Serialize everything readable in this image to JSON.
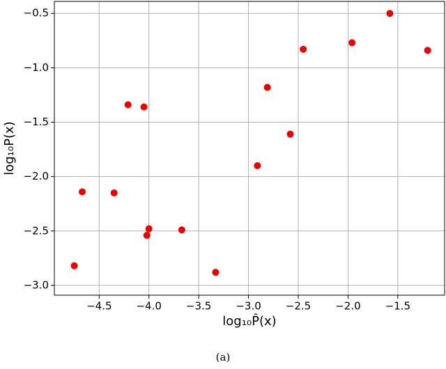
{
  "chart_data": {
    "type": "scatter",
    "x_label": "log₁₀P̂(x)",
    "y_label": "log₁₀P(x)",
    "caption": "(a)",
    "color": "#ee0000",
    "grid": true,
    "x": [
      -4.75,
      -4.67,
      -4.35,
      -4.21,
      -4.05,
      -4.0,
      -4.02,
      -3.67,
      -3.33,
      -2.91,
      -2.81,
      -2.58,
      -2.45,
      -1.96,
      -1.58,
      -1.2
    ],
    "values": [
      -2.82,
      -2.14,
      -2.15,
      -1.34,
      -1.36,
      -2.48,
      -2.54,
      -2.49,
      -2.88,
      -1.9,
      -1.18,
      -1.61,
      -0.83,
      -0.77,
      -0.5,
      -0.84
    ],
    "xlim": [
      -4.95,
      -1.03
    ],
    "ylim": [
      -3.09,
      -0.39
    ],
    "xticks": [
      {
        "value": -4.5,
        "label": "−4.5"
      },
      {
        "value": -4.0,
        "label": "−4.0"
      },
      {
        "value": -3.5,
        "label": "−3.5"
      },
      {
        "value": -3.0,
        "label": "−3.0"
      },
      {
        "value": -2.5,
        "label": "−2.5"
      },
      {
        "value": -2.0,
        "label": "−2.0"
      },
      {
        "value": -1.5,
        "label": "−1.5"
      }
    ],
    "yticks": [
      {
        "value": -3.0,
        "label": "−3.0"
      },
      {
        "value": -2.5,
        "label": "−2.5"
      },
      {
        "value": -2.0,
        "label": "−2.0"
      },
      {
        "value": -1.5,
        "label": "−1.5"
      },
      {
        "value": -1.0,
        "label": "−1.0"
      },
      {
        "value": -0.5,
        "label": "−0.5"
      }
    ]
  }
}
